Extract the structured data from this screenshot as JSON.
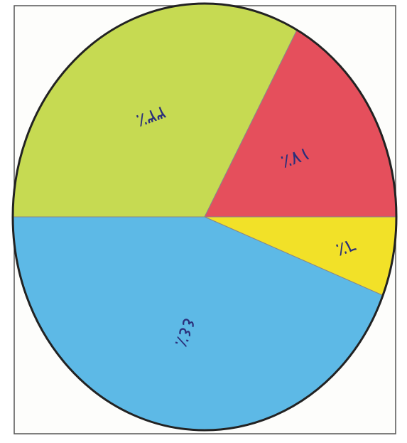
{
  "chart_data": {
    "type": "pie",
    "values": [
      33,
      17,
      6,
      44
    ],
    "value_labels": [
      "٣٣٪",
      "١٧٪",
      "٦٪",
      "٤٤٪"
    ],
    "colors": [
      "#c6da52",
      "#e54f5c",
      "#f2e128",
      "#5db9e6"
    ]
  }
}
